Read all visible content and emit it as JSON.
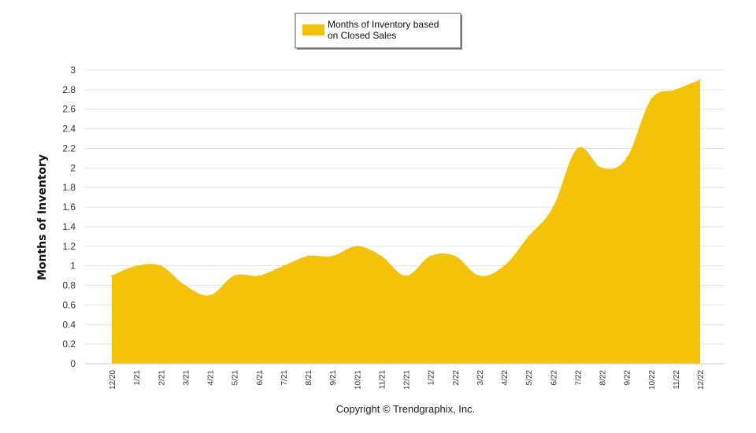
{
  "chart_data": {
    "type": "area",
    "ylabel": "Months of Inventory",
    "ylim": [
      0,
      3
    ],
    "yticks": [
      "0",
      "0.2",
      "0.4",
      "0.6",
      "0.8",
      "1",
      "1.2",
      "1.4",
      "1.6",
      "1.8",
      "2",
      "2.2",
      "2.4",
      "2.6",
      "2.8",
      "3"
    ],
    "categories": [
      "12/20",
      "1/21",
      "2/21",
      "3/21",
      "4/21",
      "5/21",
      "6/21",
      "7/21",
      "8/21",
      "9/21",
      "10/21",
      "11/21",
      "12/21",
      "1/22",
      "2/22",
      "3/22",
      "4/22",
      "5/22",
      "6/22",
      "7/22",
      "8/22",
      "9/22",
      "10/22",
      "11/22",
      "12/22"
    ],
    "series": [
      {
        "name": "Months of Inventory based on Closed Sales",
        "color": "#F5C20A",
        "values": [
          0.9,
          1.0,
          1.0,
          0.8,
          0.7,
          0.9,
          0.9,
          1.0,
          1.1,
          1.1,
          1.2,
          1.1,
          0.9,
          1.1,
          1.1,
          0.9,
          1.0,
          1.3,
          1.6,
          2.2,
          2.0,
          2.1,
          2.7,
          2.8,
          2.9
        ]
      }
    ],
    "grid": true,
    "legend": "top-center"
  },
  "legend": {
    "line1": "Months of Inventory based",
    "line2": "on Closed Sales"
  },
  "footer": "Copyright © Trendgraphix, Inc."
}
